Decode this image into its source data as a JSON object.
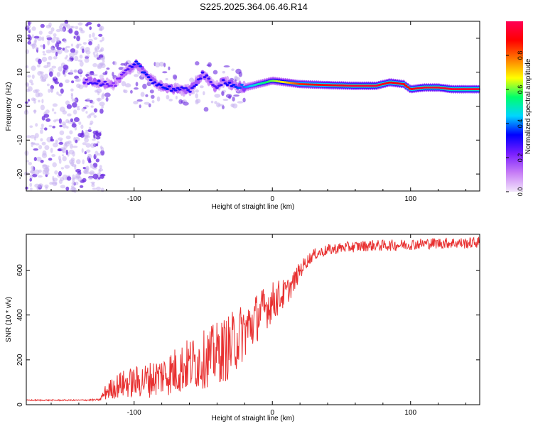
{
  "title": "S225.2025.364.06.46.R14",
  "colors": {
    "snr_line": "#e83030",
    "dot_light": "#c8b4f0",
    "dot_dark": "#6a2ae0"
  },
  "chart_data": [
    {
      "type": "heatmap",
      "xlabel": "Height of straight line (km)",
      "ylabel": "Frequency (Hz)",
      "xlim": [
        -178,
        150
      ],
      "ylim": [
        -25,
        25
      ],
      "xticks": [
        -100,
        0,
        100
      ],
      "yticks": [
        -20,
        -10,
        0,
        10,
        20
      ],
      "colorbar": {
        "label": "Normalized spectral amplitude",
        "range": [
          0.0,
          1.0
        ],
        "ticks": [
          0.0,
          0.2,
          0.4,
          0.6,
          0.8
        ],
        "tick_labels": [
          "0.0",
          "0.2",
          "0.4",
          "0.6",
          "0.8"
        ],
        "colormap": [
          "#f2e6fb",
          "#c77df6",
          "#7a1fff",
          "#0000ff",
          "#00d6ff",
          "#00ff6a",
          "#ffff00",
          "#ff7a00",
          "#ff0000",
          "#ff0055"
        ]
      },
      "noise_region_x": [
        -178,
        -122
      ],
      "track": {
        "x": [
          -136,
          -125,
          -115,
          -105,
          -98,
          -92,
          -85,
          -78,
          -70,
          -60,
          -50,
          -42,
          -35,
          -28,
          -20,
          -10,
          0,
          10,
          20,
          40,
          60,
          75,
          85,
          95,
          100,
          110,
          120,
          130,
          140,
          150
        ],
        "freq": [
          7.5,
          7.0,
          6.0,
          10.5,
          12.5,
          9.5,
          7.0,
          5.5,
          5.0,
          4.5,
          9.5,
          5.5,
          7.5,
          6.0,
          5.5,
          6.5,
          7.5,
          7.0,
          6.5,
          6.2,
          6.0,
          6.0,
          7.0,
          6.5,
          5.0,
          5.5,
          5.5,
          5.0,
          5.0,
          5.0
        ],
        "amplitude": [
          0.25,
          0.3,
          0.2,
          0.25,
          0.35,
          0.35,
          0.3,
          0.35,
          0.3,
          0.3,
          0.3,
          0.25,
          0.3,
          0.35,
          0.4,
          0.5,
          0.6,
          0.7,
          0.85,
          0.9,
          0.95,
          0.95,
          0.9,
          0.9,
          0.9,
          0.95,
          0.95,
          0.95,
          0.95,
          0.95
        ]
      }
    },
    {
      "type": "line",
      "xlabel": "Height of straight line (km)",
      "ylabel": "SNR (10 * v/v)",
      "xlim": [
        -178,
        150
      ],
      "ylim": [
        0,
        760
      ],
      "xticks": [
        -100,
        0,
        100
      ],
      "yticks": [
        0,
        200,
        400,
        600
      ],
      "series": [
        {
          "name": "SNR",
          "x": [
            -178,
            -160,
            -140,
            -125,
            -120,
            -110,
            -100,
            -90,
            -80,
            -70,
            -60,
            -50,
            -40,
            -30,
            -25,
            -20,
            -15,
            -10,
            -5,
            0,
            5,
            10,
            15,
            20,
            25,
            30,
            40,
            50,
            60,
            70,
            80,
            90,
            100,
            110,
            120,
            130,
            140,
            150
          ],
          "y": [
            20,
            20,
            20,
            22,
            60,
            90,
            100,
            110,
            130,
            150,
            180,
            200,
            230,
            260,
            300,
            330,
            360,
            400,
            430,
            460,
            480,
            500,
            540,
            600,
            640,
            670,
            690,
            700,
            705,
            710,
            710,
            712,
            715,
            718,
            720,
            722,
            720,
            725
          ],
          "noise_amp": [
            3,
            3,
            3,
            4,
            40,
            60,
            70,
            80,
            90,
            110,
            120,
            130,
            140,
            150,
            140,
            130,
            120,
            110,
            100,
            90,
            80,
            60,
            50,
            40,
            30,
            25,
            25,
            25,
            25,
            25,
            25,
            25,
            25,
            25,
            25,
            25,
            25,
            25
          ]
        }
      ]
    }
  ]
}
